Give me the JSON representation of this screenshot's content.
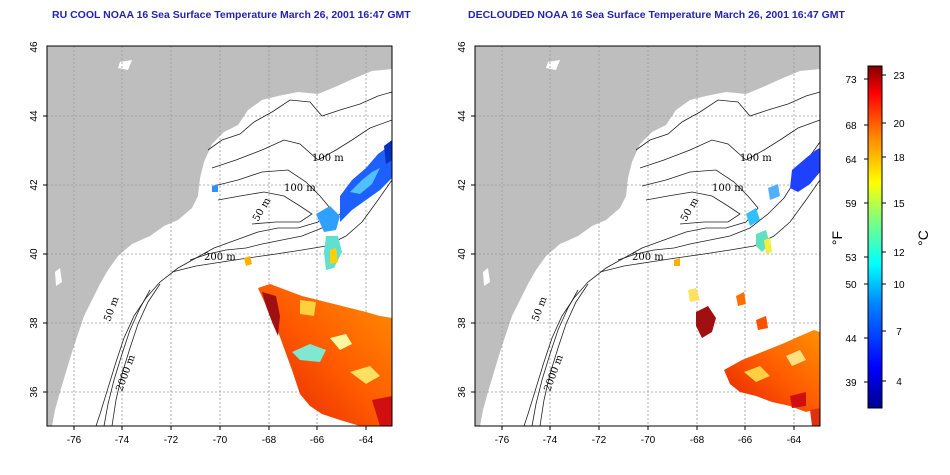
{
  "panels": [
    {
      "id": "left",
      "title": "RU COOL NOAA 16 Sea Surface Temperature March 26, 2001 16:47 GMT"
    },
    {
      "id": "right",
      "title": "DECLOUDED NOAA 16 Sea Surface Temperature March 26, 2001 16:47 GMT"
    }
  ],
  "axes": {
    "x_ticks": [
      "-76",
      "-74",
      "-72",
      "-70",
      "-68",
      "-66",
      "-64"
    ],
    "y_ticks": [
      "46",
      "44",
      "42",
      "40",
      "38",
      "36"
    ],
    "lon_range": [
      -77.3,
      -62.8
    ],
    "lat_range": [
      35.0,
      46.0
    ],
    "grid": "dotted"
  },
  "contour_labels": {
    "m100": "100 m",
    "m50": "50 m",
    "m200": "200 m",
    "m2000": "2000 m"
  },
  "colorbar": {
    "fahrenheit_unit": "°F",
    "celsius_unit": "°C",
    "fahrenheit_ticks": [
      "73",
      "68",
      "64",
      "59",
      "53",
      "50",
      "44",
      "39"
    ],
    "celsius_ticks": [
      "23",
      "20",
      "18",
      "15",
      "12",
      "10",
      "7",
      "4"
    ],
    "colors": [
      "#00008f",
      "#0000ff",
      "#0080ff",
      "#00ffff",
      "#80ff80",
      "#ffff00",
      "#ff8000",
      "#ff0000",
      "#800000"
    ]
  }
}
